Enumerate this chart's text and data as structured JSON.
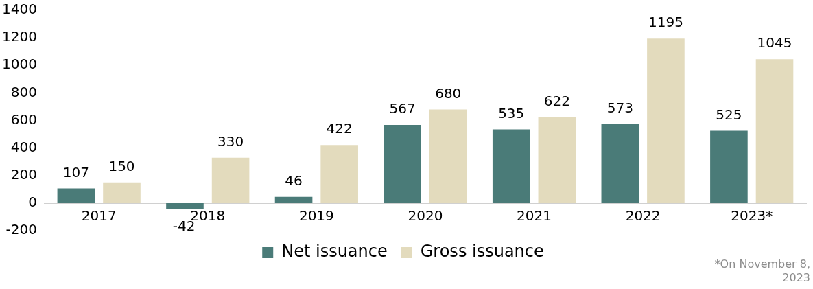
{
  "chart_data": {
    "type": "bar",
    "categories": [
      "2017",
      "2018",
      "2019",
      "2020",
      "2021",
      "2022",
      "2023*"
    ],
    "series": [
      {
        "name": "Net issuance",
        "color": "#4a7b78",
        "values": [
          107,
          -42,
          46,
          567,
          535,
          573,
          525
        ]
      },
      {
        "name": "Gross issuance",
        "color": "#e3dbbd",
        "values": [
          150,
          330,
          422,
          680,
          622,
          1195,
          1045
        ]
      }
    ],
    "ylim": [
      -200,
      1400
    ],
    "yticks": [
      -200,
      0,
      200,
      400,
      600,
      800,
      1000,
      1200,
      1400
    ],
    "grid": false,
    "legend": "bottom",
    "data_labels": true,
    "annotations": [
      "*On November 8, 2023"
    ]
  }
}
